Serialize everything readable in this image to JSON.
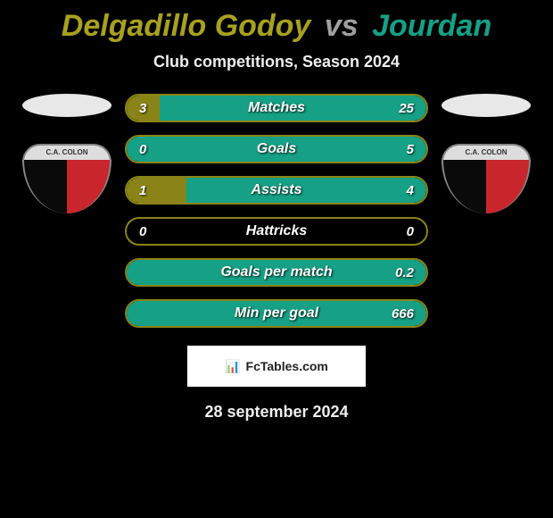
{
  "header": {
    "player1": "Delgadillo Godoy",
    "vs": "vs",
    "player2": "Jourdan",
    "subtitle": "Club competitions, Season 2024"
  },
  "colors": {
    "player1": "#a8a020",
    "player2": "#16a085",
    "vs": "#a0a0a0",
    "border_p1": "#8a8418",
    "fill_p1": "#8a8418",
    "border_p2": "#16a085",
    "fill_p2": "#16a085",
    "crest_left": "#0a0a0a",
    "crest_right": "#c8252c",
    "crest_top": "#dddddd",
    "background": "#000000"
  },
  "stats": [
    {
      "label": "Matches",
      "val1": "3",
      "val2": "25",
      "pct1": 11,
      "pct2": 89
    },
    {
      "label": "Goals",
      "val1": "0",
      "val2": "5",
      "pct1": 0,
      "pct2": 100
    },
    {
      "label": "Assists",
      "val1": "1",
      "val2": "4",
      "pct1": 20,
      "pct2": 80
    },
    {
      "label": "Hattricks",
      "val1": "0",
      "val2": "0",
      "pct1": 0,
      "pct2": 0
    },
    {
      "label": "Goals per match",
      "val1": "",
      "val2": "0.2",
      "pct1": 0,
      "pct2": 100
    },
    {
      "label": "Min per goal",
      "val1": "",
      "val2": "666",
      "pct1": 0,
      "pct2": 100
    }
  ],
  "crest": {
    "text": "C.A. COLON"
  },
  "footer": {
    "brand": "FcTables.com",
    "date": "28 september 2024"
  }
}
